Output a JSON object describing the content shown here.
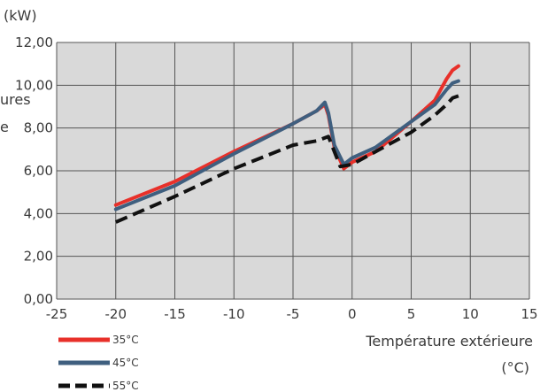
{
  "unit_label": "(kW)",
  "cropped_left_text": [
    "ures",
    "e"
  ],
  "chart_data": {
    "type": "line",
    "xlabel_line1": "Température extérieure",
    "xlabel_line2": "(°C)",
    "xlim": [
      -25,
      15
    ],
    "ylim": [
      0,
      12
    ],
    "xticks": [
      -25,
      -20,
      -15,
      -10,
      -5,
      0,
      5,
      10,
      15
    ],
    "yticks": [
      "0,00",
      "2,00",
      "4,00",
      "6,00",
      "8,00",
      "10,00",
      "12,00"
    ],
    "grid": true,
    "background": "#d9d9d9",
    "legend_position": "bottom-left",
    "series": [
      {
        "name": "35°C",
        "color": "#e8302a",
        "dash": "solid",
        "x": [
          -20,
          -15,
          -10,
          -5,
          -3,
          -2.3,
          -2,
          -1.5,
          -0.7,
          0,
          2,
          5,
          7,
          8,
          8.5,
          9
        ],
        "y": [
          4.4,
          5.5,
          6.9,
          8.2,
          8.8,
          9.1,
          8.6,
          7.1,
          6.1,
          6.4,
          6.9,
          8.3,
          9.3,
          10.3,
          10.7,
          10.9
        ]
      },
      {
        "name": "45°C",
        "color": "#3f5f7f",
        "dash": "solid",
        "x": [
          -20,
          -15,
          -10,
          -5,
          -3,
          -2.3,
          -2,
          -1.5,
          -0.7,
          0,
          2,
          5,
          7,
          8,
          8.5,
          9
        ],
        "y": [
          4.2,
          5.3,
          6.8,
          8.2,
          8.8,
          9.2,
          8.7,
          7.2,
          6.3,
          6.6,
          7.1,
          8.3,
          9.1,
          9.8,
          10.1,
          10.2
        ]
      },
      {
        "name": "55°C",
        "color": "#111111",
        "dash": "dashed",
        "x": [
          -20,
          -15,
          -10,
          -5,
          -3,
          -2,
          -1,
          0,
          2,
          5,
          7,
          8,
          8.5,
          9
        ],
        "y": [
          3.6,
          4.8,
          6.1,
          7.2,
          7.4,
          7.6,
          6.2,
          6.3,
          6.9,
          7.8,
          8.6,
          9.1,
          9.4,
          9.5
        ]
      }
    ]
  }
}
